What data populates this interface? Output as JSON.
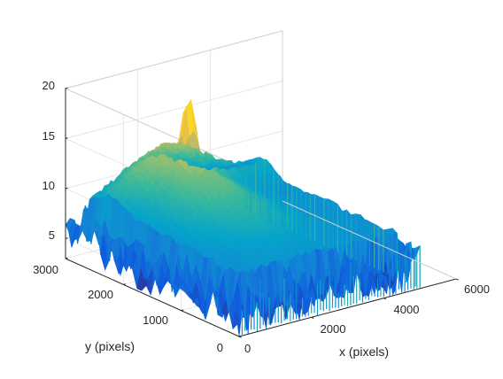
{
  "chart_data": {
    "type": "surface",
    "title": "",
    "xlabel": "x (pixels)",
    "ylabel": "y (pixels)",
    "zlabel": "",
    "x_ticks": [
      0,
      2000,
      4000,
      6000
    ],
    "y_ticks": [
      0,
      1000,
      2000,
      3000
    ],
    "z_ticks": [
      5,
      10,
      15,
      20
    ],
    "x_tick_labels": [
      "0",
      "2000",
      "4000",
      "6000"
    ],
    "y_tick_labels": [
      "0",
      "1000",
      "2000",
      "3000"
    ],
    "z_tick_labels": [
      "5",
      "10",
      "15",
      "20"
    ],
    "xlim": [
      0,
      6000
    ],
    "ylim": [
      0,
      3000
    ],
    "zlim": [
      3,
      20
    ],
    "surface": {
      "x_extent": [
        0,
        5000
      ],
      "y_extent": [
        0,
        3000
      ],
      "baseline_level": 7.5,
      "noise_floor_min": 3,
      "peak": {
        "x": 2300,
        "y": 2300,
        "z": 19
      },
      "central_plateau_level": 12,
      "ridge_level": 11.5
    },
    "colormap": "parula",
    "grid": true,
    "box": "3d"
  }
}
